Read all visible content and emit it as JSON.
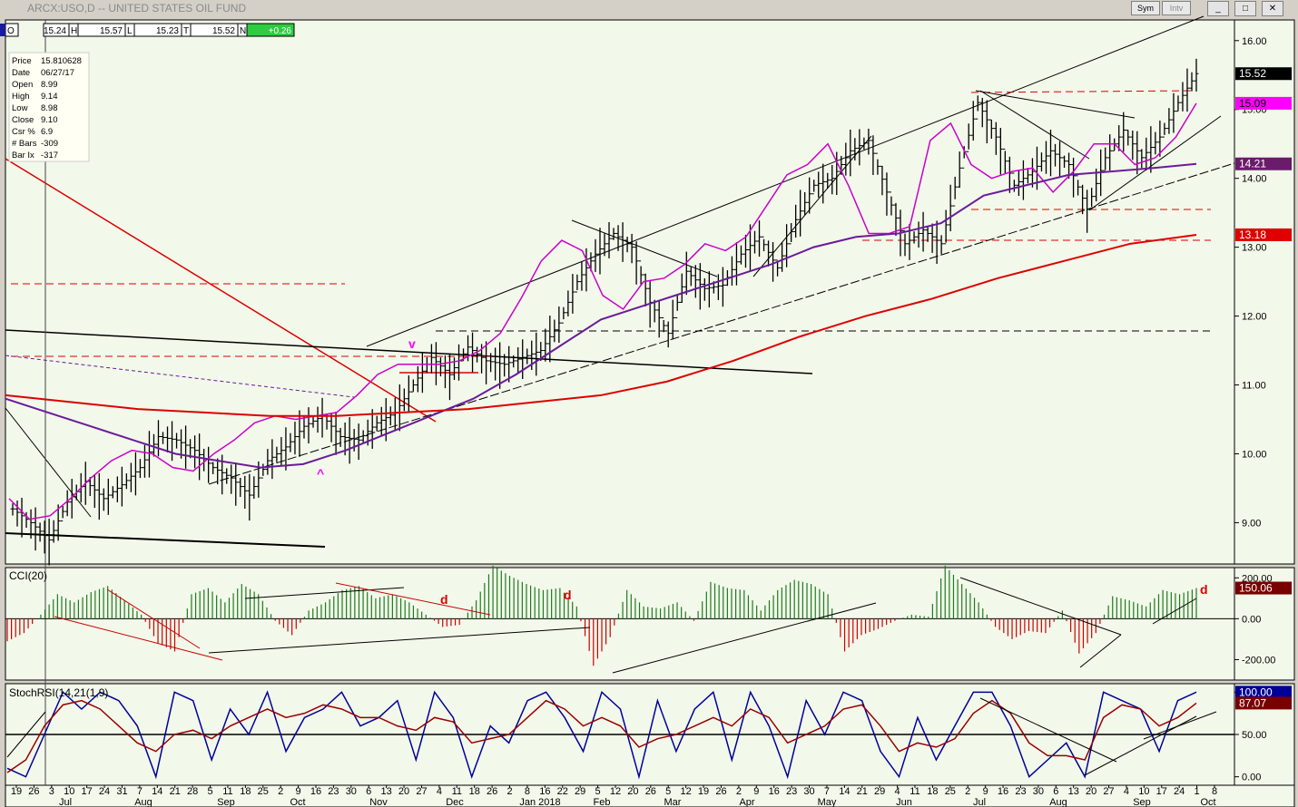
{
  "window": {
    "title": "ARCX:USO,D -- UNITED STATES OIL FUND",
    "sym_label": "Sym",
    "intv_label": "Intv",
    "btn_min": "_",
    "btn_restore": "□",
    "btn_close": "✕"
  },
  "quote_bar": [
    {
      "k": "O",
      "v": "15.24"
    },
    {
      "k": "H",
      "v": "15.57"
    },
    {
      "k": "L",
      "v": "15.23"
    },
    {
      "k": "T",
      "v": "15.52"
    },
    {
      "k": "N",
      "v": "+0.26"
    }
  ],
  "info_panel": [
    {
      "k": "Price",
      "v": "15.810628"
    },
    {
      "k": "Date",
      "v": "06/27/17"
    },
    {
      "k": "Open",
      "v": "8.99"
    },
    {
      "k": "High",
      "v": "9.14"
    },
    {
      "k": "Low",
      "v": "8.98"
    },
    {
      "k": "Close",
      "v": "9.10"
    },
    {
      "k": "Csr %",
      "v": "6.9"
    },
    {
      "k": "# Bars",
      "v": "-309"
    },
    {
      "k": "Bar Ix",
      "v": "-317"
    }
  ],
  "chart_data": [
    {
      "type": "ohlc",
      "panel": "price",
      "ylim": [
        8.4,
        16.3
      ],
      "yticks": [
        "16.00",
        "15.00",
        "14.00",
        "13.00",
        "12.00",
        "11.00",
        "10.00",
        "9.00"
      ],
      "x_day_labels": [
        "19",
        "26",
        "3",
        "10",
        "17",
        "24",
        "31",
        "7",
        "14",
        "21",
        "28",
        "5",
        "11",
        "18",
        "25",
        "2",
        "9",
        "16",
        "23",
        "30",
        "6",
        "13",
        "20",
        "27",
        "4",
        "11",
        "18",
        "26",
        "2",
        "8",
        "16",
        "22",
        "29",
        "5",
        "12",
        "20",
        "26",
        "5",
        "12",
        "19",
        "26",
        "2",
        "9",
        "16",
        "23",
        "30",
        "7",
        "14",
        "21",
        "29",
        "4",
        "11",
        "18",
        "25",
        "2",
        "9",
        "16",
        "23",
        "30",
        "6",
        "13",
        "20",
        "27",
        "4",
        "10",
        "17",
        "24",
        "1",
        "8"
      ],
      "x_month_labels": [
        "Jul",
        "Aug",
        "Sep",
        "Oct",
        "Nov",
        "Dec",
        "Jan 2018",
        "Feb",
        "Mar",
        "Apr",
        "May",
        "Jun",
        "Jul",
        "Aug",
        "Sep",
        "Oct"
      ],
      "close_series": [
        9.2,
        9.0,
        8.75,
        9.3,
        9.6,
        9.35,
        9.55,
        9.8,
        10.25,
        10.2,
        10.05,
        9.8,
        9.65,
        9.4,
        9.9,
        10.1,
        10.4,
        10.55,
        10.25,
        10.2,
        10.45,
        10.6,
        11.0,
        11.4,
        11.15,
        11.55,
        11.35,
        11.3,
        11.4,
        11.5,
        11.9,
        12.5,
        12.9,
        13.2,
        13.0,
        12.2,
        11.75,
        12.65,
        12.4,
        12.45,
        12.9,
        13.15,
        12.7,
        13.4,
        13.9,
        14.0,
        14.4,
        14.55,
        13.8,
        13.05,
        13.25,
        13.05,
        14.15,
        15.1,
        14.6,
        13.9,
        14.1,
        14.4,
        14.2,
        13.55,
        14.3,
        14.7,
        14.3,
        14.6,
        15.1,
        15.52
      ],
      "overlays": [
        {
          "name": "",
          "color": "#cc00cc",
          "values": [
            9.35,
            9.05,
            9.1,
            9.35,
            9.65,
            9.9,
            10.05,
            10.0,
            9.8,
            9.75,
            10.0,
            10.2,
            10.45,
            10.55,
            10.5,
            10.55,
            10.6,
            10.85,
            11.15,
            11.3,
            11.3,
            11.3,
            11.35,
            11.5,
            11.75,
            12.25,
            12.8,
            13.1,
            12.95,
            12.3,
            12.1,
            12.5,
            12.55,
            12.75,
            13.05,
            12.95,
            13.15,
            13.6,
            14.05,
            14.2,
            14.5,
            13.9,
            13.2,
            13.2,
            13.3,
            14.55,
            14.8,
            14.2,
            14.0,
            14.1,
            14.15,
            13.8,
            14.1,
            14.5,
            14.5,
            14.2,
            14.3,
            14.6,
            15.09
          ]
        },
        {
          "name": "",
          "color": "#6a1b9a",
          "values": [
            10.8,
            10.6,
            10.4,
            10.2,
            10.0,
            9.9,
            9.8,
            9.85,
            10.05,
            10.3,
            10.55,
            10.8,
            11.15,
            11.55,
            11.95,
            12.15,
            12.35,
            12.55,
            12.75,
            13.0,
            13.15,
            13.2,
            13.35,
            13.75,
            13.9,
            14.05,
            14.1,
            14.15,
            14.21
          ]
        },
        {
          "name": "",
          "color": "#dd0000",
          "values": [
            10.85,
            10.75,
            10.65,
            10.6,
            10.55,
            10.55,
            10.6,
            10.65,
            10.75,
            10.85,
            11.05,
            11.35,
            11.7,
            12.0,
            12.25,
            12.55,
            12.8,
            13.05,
            13.18
          ]
        }
      ],
      "price_labels": [
        {
          "value": "15.52",
          "bg": "#000000",
          "fg": "#ffffff"
        },
        {
          "value": "15.09",
          "bg": "#ff00ff",
          "fg": "#000000"
        },
        {
          "value": "14.21",
          "bg": "#6a1b6a",
          "fg": "#ffffff"
        },
        {
          "value": "13.18",
          "bg": "#e00000",
          "fg": "#ffffff"
        }
      ],
      "annotations": [
        "v",
        "^"
      ]
    },
    {
      "type": "histogram",
      "panel": "cci",
      "title": "CCI(20)",
      "ylim": [
        -300,
        250
      ],
      "yticks": [
        "200.00",
        "0.00",
        "-200.00"
      ],
      "last_value": "150.06",
      "annotations": [
        "d",
        "d",
        "d"
      ],
      "values": [
        -110,
        -70,
        20,
        120,
        80,
        130,
        160,
        90,
        20,
        -120,
        -160,
        120,
        150,
        80,
        170,
        120,
        -10,
        -80,
        40,
        80,
        140,
        160,
        100,
        120,
        80,
        20,
        -40,
        -30,
        90,
        260,
        210,
        170,
        140,
        150,
        60,
        -230,
        -90,
        140,
        60,
        50,
        80,
        -10,
        180,
        150,
        140,
        40,
        140,
        190,
        170,
        120,
        -160,
        -80,
        -50,
        -10,
        20,
        10,
        260,
        170,
        80,
        -40,
        -100,
        -60,
        -70,
        40,
        -170,
        -70,
        110,
        90,
        60,
        140,
        120,
        150
      ]
    },
    {
      "type": "line",
      "panel": "stochrsi",
      "title": "StochRSI(14,21(1,9)",
      "ylim": [
        -10,
        110
      ],
      "yticks": [
        "100.00",
        "50.00",
        "0.00"
      ],
      "last_values": [
        "100.00",
        "87.07"
      ],
      "series": [
        {
          "name": "",
          "color": "#000099",
          "values": [
            10,
            0,
            50,
            100,
            80,
            100,
            90,
            60,
            0,
            100,
            90,
            20,
            80,
            50,
            100,
            30,
            70,
            80,
            100,
            60,
            70,
            90,
            20,
            100,
            70,
            0,
            60,
            40,
            90,
            100,
            70,
            30,
            100,
            80,
            0,
            90,
            30,
            80,
            100,
            20,
            100,
            60,
            0,
            90,
            50,
            100,
            90,
            30,
            0,
            70,
            20,
            60,
            100,
            100,
            60,
            0,
            20,
            40,
            0,
            100,
            90,
            80,
            30,
            90,
            100
          ]
        },
        {
          "name": "",
          "color": "#990000",
          "values": [
            5,
            20,
            60,
            85,
            90,
            80,
            60,
            40,
            30,
            50,
            55,
            45,
            60,
            70,
            80,
            70,
            75,
            85,
            80,
            70,
            70,
            60,
            55,
            70,
            65,
            40,
            45,
            50,
            70,
            90,
            80,
            60,
            70,
            60,
            35,
            45,
            50,
            60,
            70,
            60,
            80,
            70,
            40,
            50,
            60,
            80,
            85,
            60,
            30,
            40,
            35,
            45,
            75,
            90,
            75,
            40,
            25,
            25,
            20,
            70,
            85,
            80,
            60,
            70,
            87
          ]
        }
      ]
    }
  ]
}
